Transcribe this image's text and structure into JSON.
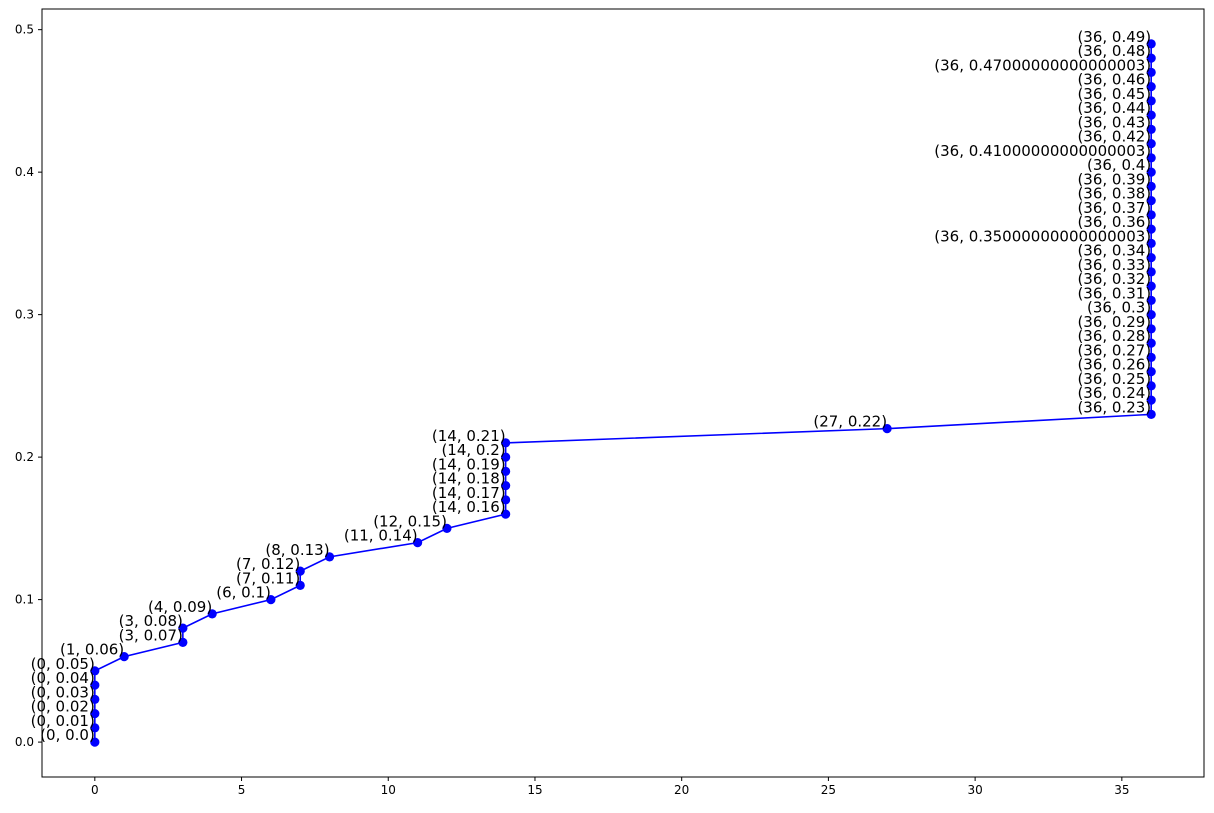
{
  "chart_data": {
    "type": "line",
    "title": "",
    "xlabel": "",
    "ylabel": "",
    "xlim": [
      -1.8,
      37.8
    ],
    "ylim": [
      -0.0245,
      0.5145
    ],
    "xticks": [
      0,
      5,
      10,
      15,
      20,
      25,
      30,
      35
    ],
    "yticks": [
      0.0,
      0.1,
      0.2,
      0.3,
      0.4,
      0.5
    ],
    "xtick_labels": [
      "0",
      "5",
      "10",
      "15",
      "20",
      "25",
      "30",
      "35"
    ],
    "ytick_labels": [
      "0.0",
      "0.1",
      "0.2",
      "0.3",
      "0.4",
      "0.5"
    ],
    "grid": false,
    "colors": {
      "series": "#0000ff",
      "axes": "#000000"
    },
    "series": [
      {
        "points": [
          {
            "x": 0,
            "y": 0.0,
            "label": "(0, 0.0)"
          },
          {
            "x": 0,
            "y": 0.01,
            "label": "(0, 0.01)"
          },
          {
            "x": 0,
            "y": 0.02,
            "label": "(0, 0.02)"
          },
          {
            "x": 0,
            "y": 0.03,
            "label": "(0, 0.03)"
          },
          {
            "x": 0,
            "y": 0.04,
            "label": "(0, 0.04)"
          },
          {
            "x": 0,
            "y": 0.05,
            "label": "(0, 0.05)"
          },
          {
            "x": 1,
            "y": 0.06,
            "label": "(1, 0.06)"
          },
          {
            "x": 3,
            "y": 0.07,
            "label": "(3, 0.07)"
          },
          {
            "x": 3,
            "y": 0.08,
            "label": "(3, 0.08)"
          },
          {
            "x": 4,
            "y": 0.09,
            "label": "(4, 0.09)"
          },
          {
            "x": 6,
            "y": 0.1,
            "label": "(6, 0.1)"
          },
          {
            "x": 7,
            "y": 0.11,
            "label": "(7, 0.11)"
          },
          {
            "x": 7,
            "y": 0.12,
            "label": "(7, 0.12)"
          },
          {
            "x": 8,
            "y": 0.13,
            "label": "(8, 0.13)"
          },
          {
            "x": 11,
            "y": 0.14,
            "label": "(11, 0.14)"
          },
          {
            "x": 12,
            "y": 0.15,
            "label": "(12, 0.15)"
          },
          {
            "x": 14,
            "y": 0.16,
            "label": "(14, 0.16)"
          },
          {
            "x": 14,
            "y": 0.17,
            "label": "(14, 0.17)"
          },
          {
            "x": 14,
            "y": 0.18,
            "label": "(14, 0.18)"
          },
          {
            "x": 14,
            "y": 0.19,
            "label": "(14, 0.19)"
          },
          {
            "x": 14,
            "y": 0.2,
            "label": "(14, 0.2)"
          },
          {
            "x": 14,
            "y": 0.21,
            "label": "(14, 0.21)"
          },
          {
            "x": 27,
            "y": 0.22,
            "label": "(27, 0.22)"
          },
          {
            "x": 36,
            "y": 0.23,
            "label": "(36, 0.23)"
          },
          {
            "x": 36,
            "y": 0.24,
            "label": "(36, 0.24)"
          },
          {
            "x": 36,
            "y": 0.25,
            "label": "(36, 0.25)"
          },
          {
            "x": 36,
            "y": 0.26,
            "label": "(36, 0.26)"
          },
          {
            "x": 36,
            "y": 0.27,
            "label": "(36, 0.27)"
          },
          {
            "x": 36,
            "y": 0.28,
            "label": "(36, 0.28)"
          },
          {
            "x": 36,
            "y": 0.29,
            "label": "(36, 0.29)"
          },
          {
            "x": 36,
            "y": 0.3,
            "label": "(36, 0.3)"
          },
          {
            "x": 36,
            "y": 0.31,
            "label": "(36, 0.31)"
          },
          {
            "x": 36,
            "y": 0.32,
            "label": "(36, 0.32)"
          },
          {
            "x": 36,
            "y": 0.33,
            "label": "(36, 0.33)"
          },
          {
            "x": 36,
            "y": 0.34,
            "label": "(36, 0.34)"
          },
          {
            "x": 36,
            "y": 0.35000000000000003,
            "label": "(36, 0.35000000000000003)"
          },
          {
            "x": 36,
            "y": 0.36,
            "label": "(36, 0.36)"
          },
          {
            "x": 36,
            "y": 0.37,
            "label": "(36, 0.37)"
          },
          {
            "x": 36,
            "y": 0.38,
            "label": "(36, 0.38)"
          },
          {
            "x": 36,
            "y": 0.39,
            "label": "(36, 0.39)"
          },
          {
            "x": 36,
            "y": 0.4,
            "label": "(36, 0.4)"
          },
          {
            "x": 36,
            "y": 0.41000000000000003,
            "label": "(36, 0.41000000000000003)"
          },
          {
            "x": 36,
            "y": 0.42,
            "label": "(36, 0.42)"
          },
          {
            "x": 36,
            "y": 0.43,
            "label": "(36, 0.43)"
          },
          {
            "x": 36,
            "y": 0.44,
            "label": "(36, 0.44)"
          },
          {
            "x": 36,
            "y": 0.45,
            "label": "(36, 0.45)"
          },
          {
            "x": 36,
            "y": 0.46,
            "label": "(36, 0.46)"
          },
          {
            "x": 36,
            "y": 0.47000000000000003,
            "label": "(36, 0.47000000000000003)"
          },
          {
            "x": 36,
            "y": 0.48,
            "label": "(36, 0.48)"
          },
          {
            "x": 36,
            "y": 0.49,
            "label": "(36, 0.49)"
          }
        ]
      }
    ]
  }
}
